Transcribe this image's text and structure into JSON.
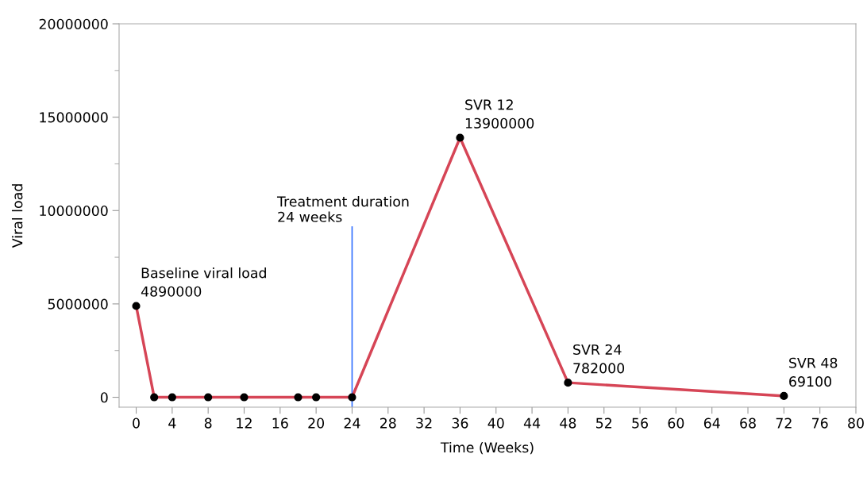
{
  "chart_data": {
    "type": "line",
    "xlabel": "Time (Weeks)",
    "ylabel": "Viral load",
    "x": [
      0,
      2,
      4,
      8,
      12,
      18,
      20,
      24,
      36,
      48,
      72
    ],
    "series": [
      {
        "color": "#d64556",
        "values": [
          4890000,
          0,
          0,
          0,
          0,
          0,
          0,
          0,
          13900000,
          782000,
          69100
        ]
      }
    ],
    "marker": "circle",
    "xlim": [
      -1.9,
      80
    ],
    "xticks": [
      0,
      4,
      8,
      12,
      16,
      20,
      24,
      28,
      32,
      36,
      40,
      44,
      48,
      52,
      56,
      60,
      64,
      68,
      72,
      76,
      80
    ],
    "ylim": [
      -530000,
      20000000
    ],
    "yticks": [
      0,
      5000000,
      10000000,
      15000000,
      20000000
    ],
    "ref_lines": [
      {
        "axis": "x",
        "value": 24,
        "label": "Treatment duration\n24 weeks",
        "color": "#3370ff"
      }
    ],
    "annotations": [
      {
        "text": "Baseline viral load\n4890000",
        "x": 0,
        "y": 4890000
      },
      {
        "text": "SVR 12\n13900000",
        "x": 36,
        "y": 13900000
      },
      {
        "text": "SVR 24\n782000",
        "x": 48,
        "y": 782000
      },
      {
        "text": "SVR 48\n69100",
        "x": 72,
        "y": 69100
      }
    ],
    "grid": false,
    "legend": false
  }
}
